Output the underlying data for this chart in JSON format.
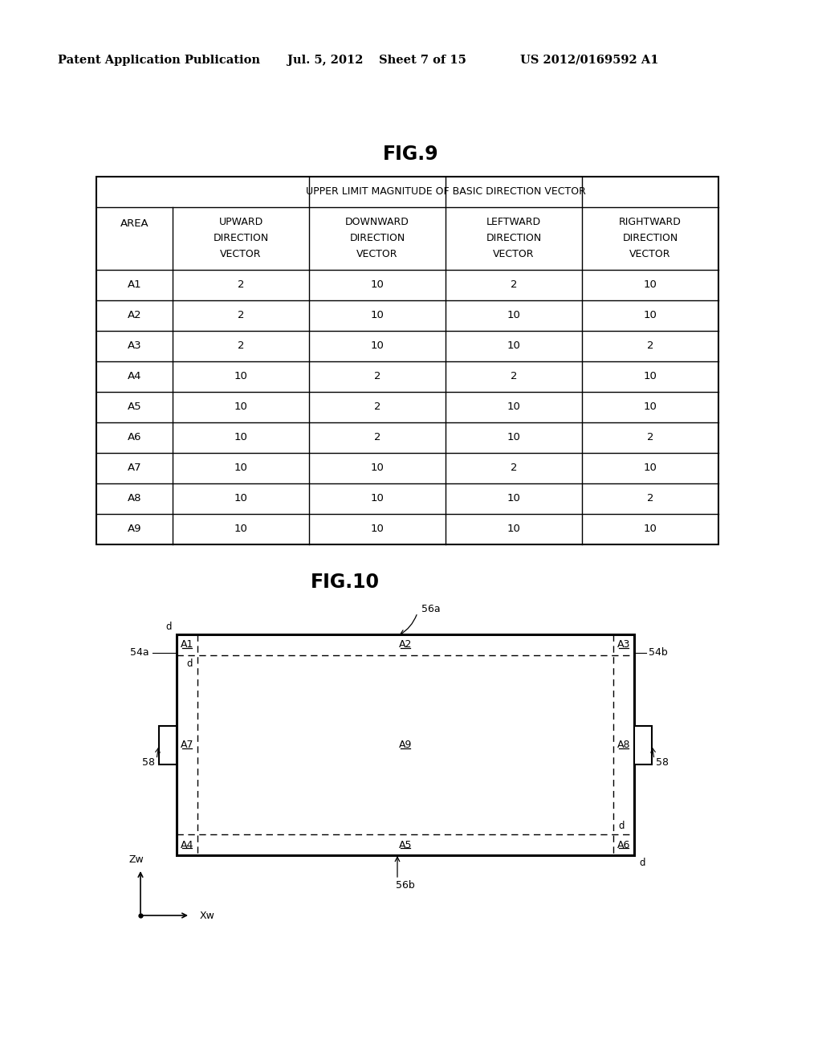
{
  "header_text": "Patent Application Publication",
  "date_text": "Jul. 5, 2012",
  "sheet_text": "Sheet 7 of 15",
  "patent_text": "US 2012/0169592 A1",
  "fig9_title": "FIG.9",
  "fig10_title": "FIG.10",
  "table_main_header": "UPPER LIMIT MAGNITUDE OF BASIC DIRECTION VECTOR",
  "col_headers": [
    [
      "UPWARD",
      "DIRECTION",
      "VECTOR"
    ],
    [
      "DOWNWARD",
      "DIRECTION",
      "VECTOR"
    ],
    [
      "LEFTWARD",
      "DIRECTION",
      "VECTOR"
    ],
    [
      "RIGHTWARD",
      "DIRECTION",
      "VECTOR"
    ]
  ],
  "row_header": "AREA",
  "areas": [
    "A1",
    "A2",
    "A3",
    "A4",
    "A5",
    "A6",
    "A7",
    "A8",
    "A9"
  ],
  "table_data": [
    [
      2,
      10,
      2,
      10
    ],
    [
      2,
      10,
      10,
      10
    ],
    [
      2,
      10,
      10,
      2
    ],
    [
      10,
      2,
      2,
      10
    ],
    [
      10,
      2,
      10,
      10
    ],
    [
      10,
      2,
      10,
      2
    ],
    [
      10,
      10,
      2,
      10
    ],
    [
      10,
      10,
      10,
      2
    ],
    [
      10,
      10,
      10,
      10
    ]
  ],
  "bg_color": "#ffffff",
  "text_color": "#000000"
}
